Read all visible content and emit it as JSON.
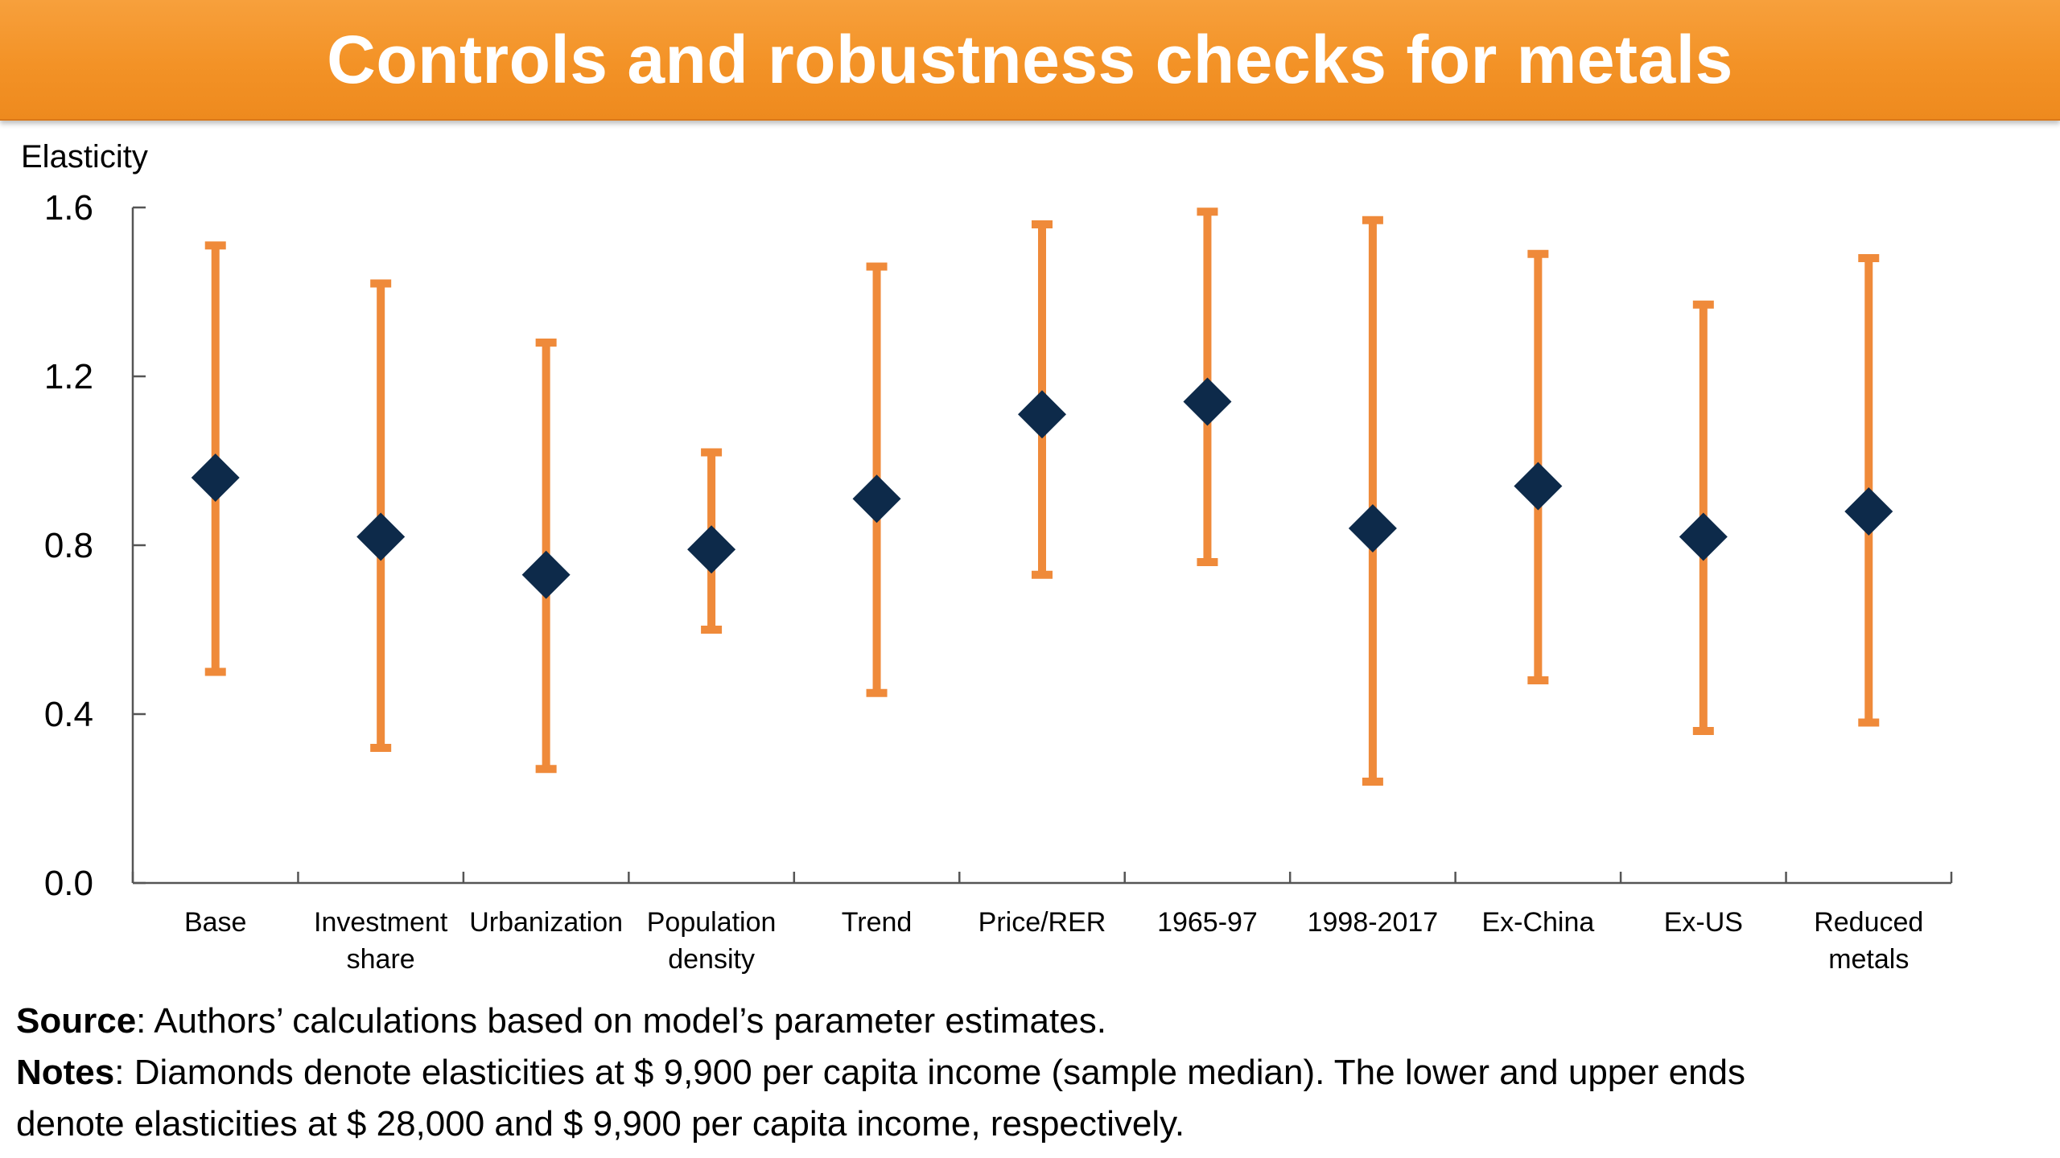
{
  "title": "Controls and robustness checks for metals",
  "colors": {
    "banner": "#f39226",
    "whisker": "#ef8a3a",
    "marker": "#0d2a4a",
    "axis": "#555555"
  },
  "chart_data": {
    "type": "scatter",
    "subtype": "point-with-range",
    "ylabel": "Elasticity",
    "ylim": [
      0.0,
      1.6
    ],
    "yticks": [
      "0.0",
      "0.4",
      "0.8",
      "1.2",
      "1.6"
    ],
    "grid": false,
    "categories": [
      [
        "Base"
      ],
      [
        "Investment",
        "share"
      ],
      [
        "Urbanization"
      ],
      [
        "Population",
        "density"
      ],
      [
        "Trend"
      ],
      [
        "Price/RER"
      ],
      [
        "1965-97"
      ],
      [
        "1998-2017"
      ],
      [
        "Ex-China"
      ],
      [
        "Ex-US"
      ],
      [
        "Reduced",
        "metals"
      ]
    ],
    "points": [
      0.96,
      0.82,
      0.73,
      0.79,
      0.91,
      1.11,
      1.14,
      0.84,
      0.94,
      0.82,
      0.88
    ],
    "lower": [
      0.5,
      0.32,
      0.27,
      0.6,
      0.45,
      0.73,
      0.76,
      0.24,
      0.48,
      0.36,
      0.38
    ],
    "upper": [
      1.51,
      1.42,
      1.28,
      1.02,
      1.46,
      1.56,
      1.59,
      1.57,
      1.49,
      1.37,
      1.48
    ]
  },
  "source": {
    "label": "Source",
    "text": ": Authors’ calculations based on model’s parameter estimates."
  },
  "notes": {
    "label": "Notes",
    "line1": ": Diamonds denote elasticities at $ 9,900 per capita income (sample median). The lower and upper ends",
    "line2": "denote elasticities at $ 28,000 and $ 9,900 per capita income, respectively."
  }
}
